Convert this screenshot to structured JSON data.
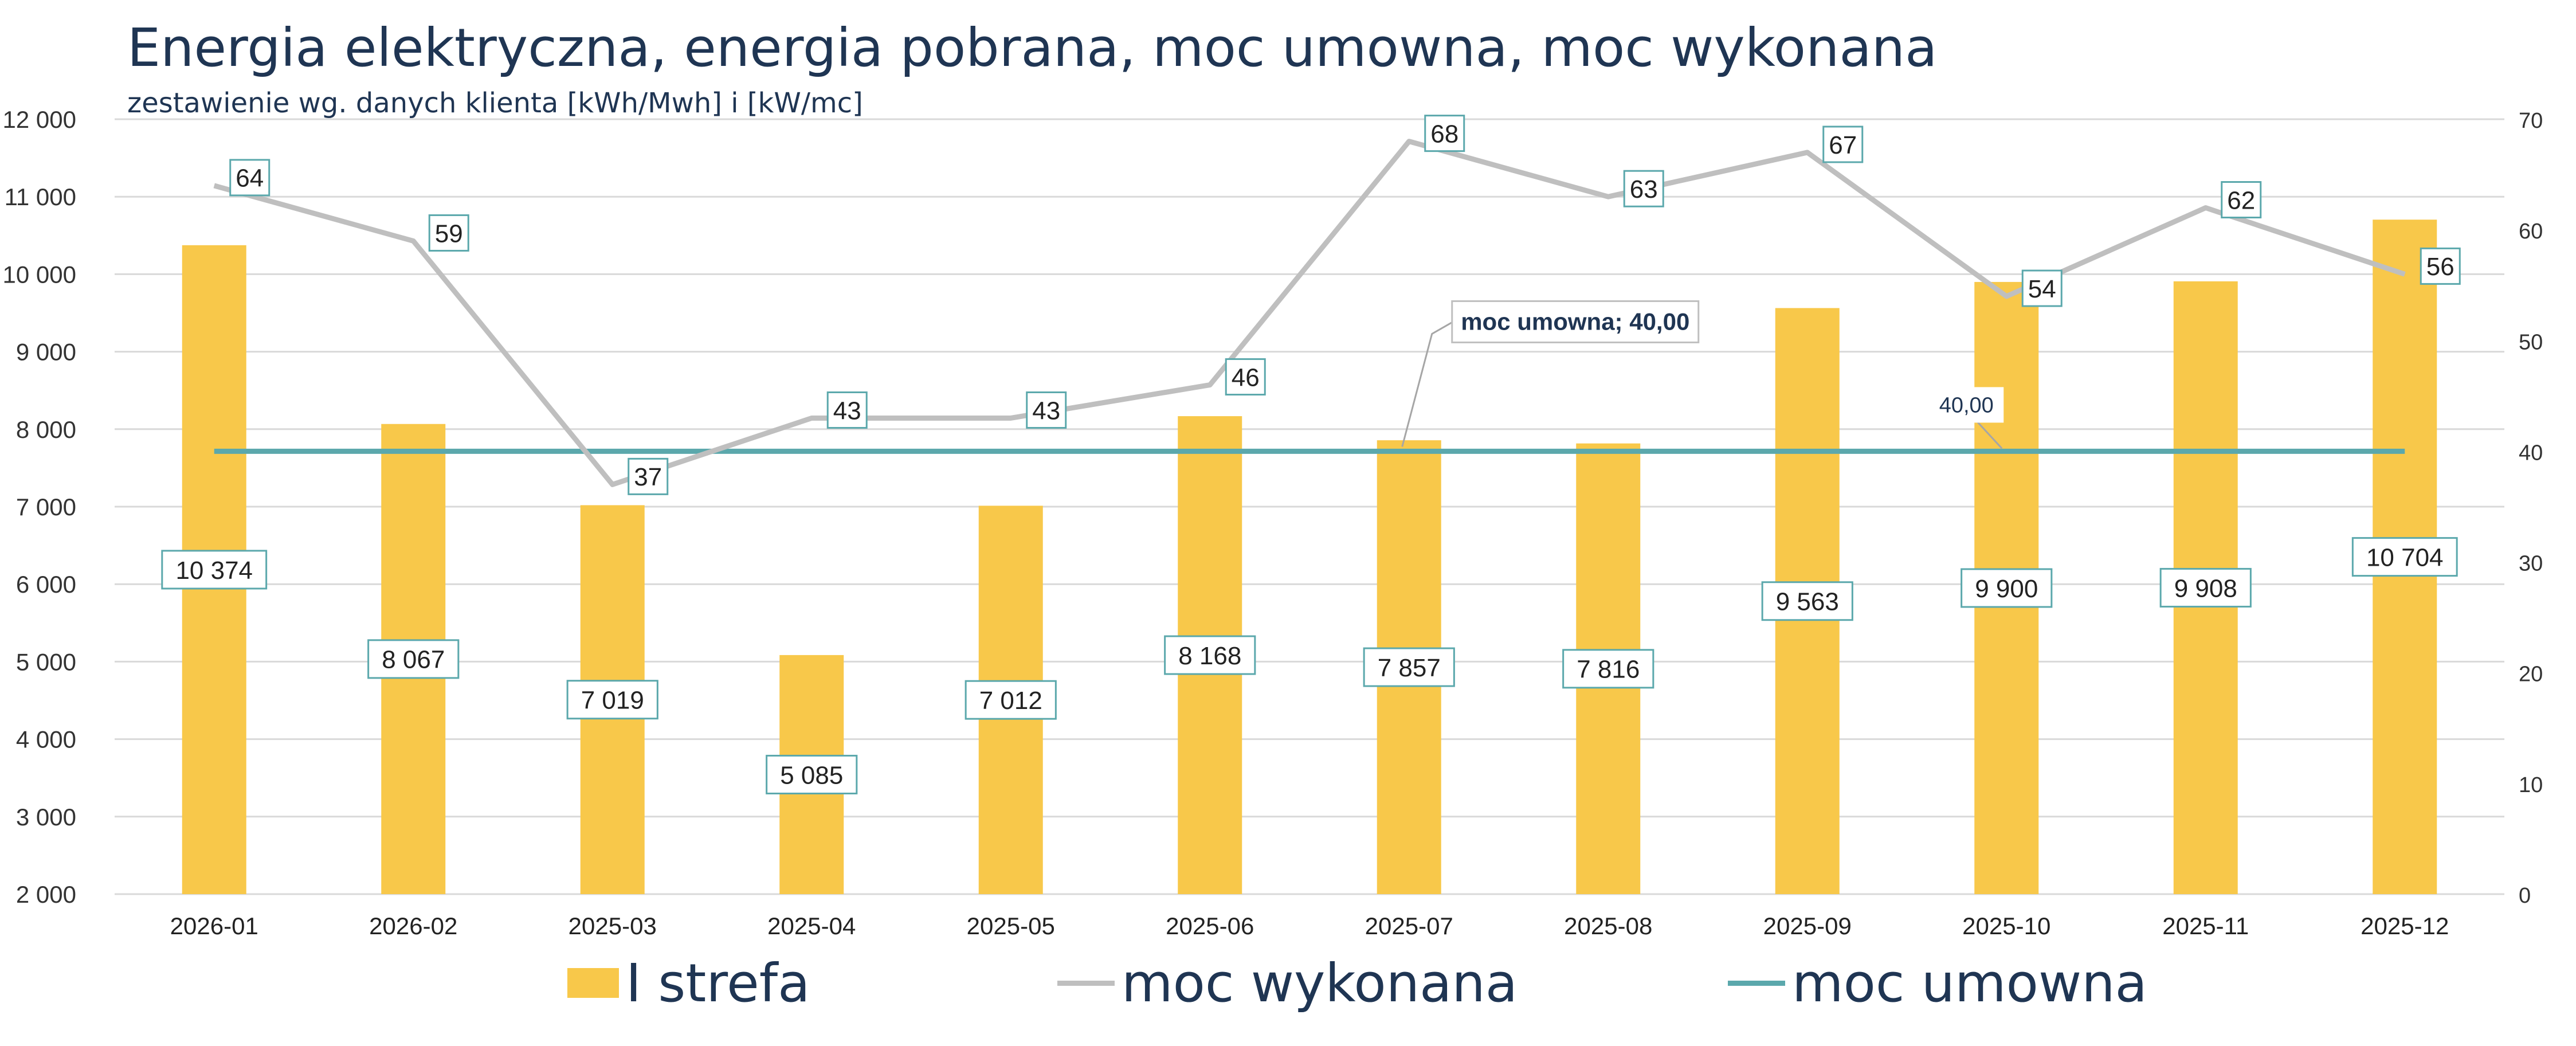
{
  "chart_data": {
    "type": "bar",
    "title": "Energia elektryczna, energia pobrana, moc umowna, moc wykonana",
    "subtitle": "zestawienie wg. danych klienta [kWh/Mwh] i [kW/mc]",
    "categories": [
      "2026-01",
      "2026-02",
      "2025-03",
      "2025-04",
      "2025-05",
      "2025-06",
      "2025-07",
      "2025-08",
      "2025-09",
      "2025-10",
      "2025-11",
      "2025-12"
    ],
    "series": [
      {
        "name": "I strefa",
        "type": "bar",
        "axis": "left",
        "color": "#f8c84a",
        "values": [
          10374,
          8067,
          7019,
          5085,
          7012,
          8168,
          7857,
          7816,
          9563,
          9900,
          9908,
          10704
        ],
        "labels": [
          "10 374",
          "8 067",
          "7 019",
          "5 085",
          "7 012",
          "8 168",
          "7 857",
          "7 816",
          "9 563",
          "9 900",
          "9 908",
          "10 704"
        ]
      },
      {
        "name": "moc wykonana",
        "type": "line",
        "axis": "right",
        "color": "#bfbfbf",
        "values": [
          64,
          59,
          37,
          43,
          43,
          46,
          68,
          63,
          67,
          54,
          62,
          56
        ],
        "labels": [
          "64",
          "59",
          "37",
          "43",
          "43",
          "46",
          "68",
          "63",
          "67",
          "54",
          "62",
          "56"
        ]
      },
      {
        "name": "moc umowna",
        "type": "line",
        "axis": "right",
        "color": "#5ba8ac",
        "values": [
          40,
          40,
          40,
          40,
          40,
          40,
          40,
          40,
          40,
          40,
          40,
          40
        ]
      }
    ],
    "y_left": {
      "min": 2000,
      "max": 12000,
      "step": 1000,
      "tick_labels": [
        "2 000",
        "3 000",
        "4 000",
        "5 000",
        "6 000",
        "7 000",
        "8 000",
        "9 000",
        "10 000",
        "11 000",
        "12 000"
      ]
    },
    "y_right": {
      "min": 0,
      "max": 70,
      "step": 10,
      "tick_labels": [
        "0",
        "10",
        "20",
        "30",
        "40",
        "50",
        "60",
        "70"
      ]
    },
    "callouts": [
      {
        "text": "moc umowna; 40,00",
        "category_index": 6
      },
      {
        "text": "40,00",
        "category_index": 9
      }
    ],
    "grid": true,
    "legend_position": "bottom"
  }
}
